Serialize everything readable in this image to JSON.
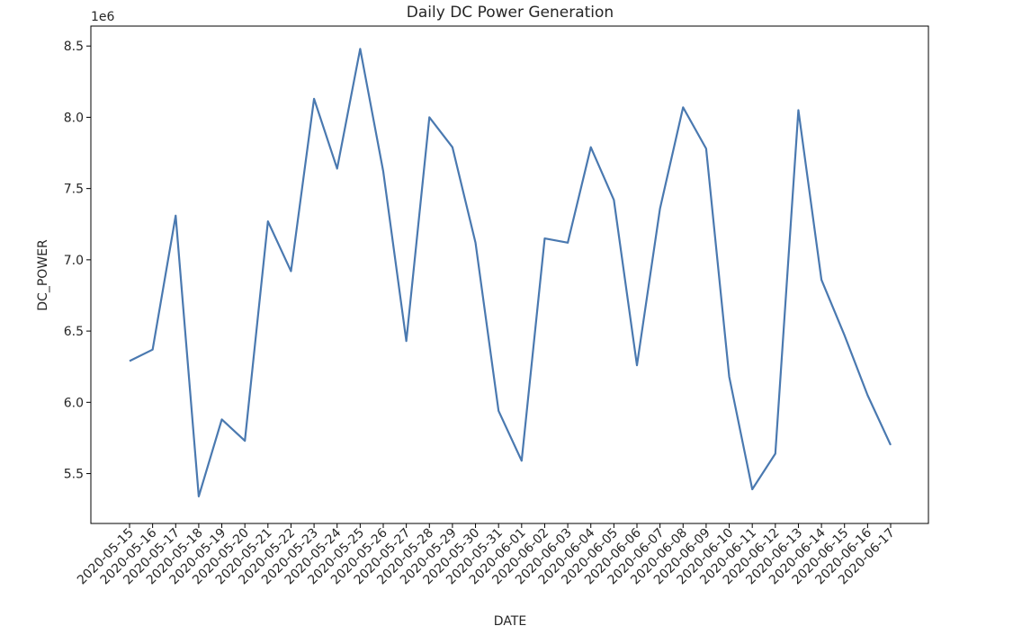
{
  "chart_data": {
    "type": "line",
    "title": "Daily DC Power Generation",
    "xlabel": "DATE",
    "ylabel": "DC_POWER",
    "y_offset_label": "1e6",
    "ylim": [
      5.15,
      8.64
    ],
    "yticks": [
      "5.5",
      "6.0",
      "6.5",
      "7.0",
      "7.5",
      "8.0",
      "8.5"
    ],
    "ytick_values": [
      5.5,
      6.0,
      6.5,
      7.0,
      7.5,
      8.0,
      8.5
    ],
    "grid": false,
    "line_color": "#4a79b0",
    "x": [
      "2020-05-15",
      "2020-05-16",
      "2020-05-17",
      "2020-05-18",
      "2020-05-19",
      "2020-05-20",
      "2020-05-21",
      "2020-05-22",
      "2020-05-23",
      "2020-05-24",
      "2020-05-25",
      "2020-05-26",
      "2020-05-27",
      "2020-05-28",
      "2020-05-29",
      "2020-05-30",
      "2020-05-31",
      "2020-06-01",
      "2020-06-02",
      "2020-06-03",
      "2020-06-04",
      "2020-06-05",
      "2020-06-06",
      "2020-06-07",
      "2020-06-08",
      "2020-06-09",
      "2020-06-10",
      "2020-06-11",
      "2020-06-12",
      "2020-06-13",
      "2020-06-14",
      "2020-06-15",
      "2020-06-16",
      "2020-06-17"
    ],
    "series": [
      {
        "values": [
          6.29,
          6.37,
          7.31,
          5.34,
          5.88,
          5.73,
          7.27,
          6.92,
          8.13,
          7.64,
          8.48,
          7.62,
          6.43,
          8.0,
          7.79,
          7.12,
          5.94,
          5.59,
          7.15,
          7.12,
          7.79,
          7.42,
          6.26,
          7.36,
          8.07,
          7.78,
          6.18,
          5.39,
          5.64,
          8.05,
          6.86,
          6.47,
          6.05,
          5.7
        ]
      }
    ]
  }
}
